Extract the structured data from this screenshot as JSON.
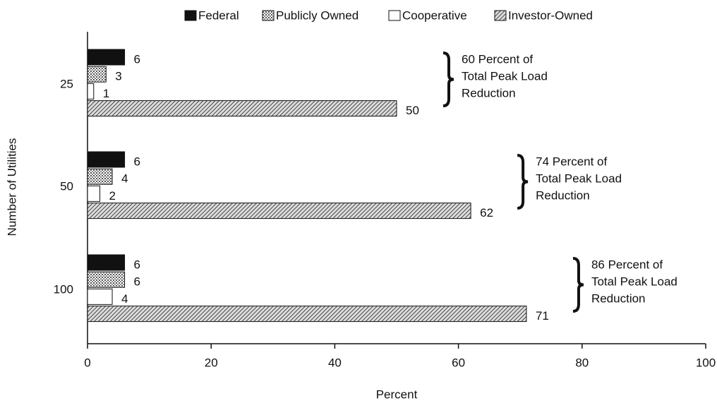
{
  "chart_data": {
    "type": "bar",
    "orientation": "horizontal",
    "categories": [
      "25",
      "50",
      "100"
    ],
    "series": [
      {
        "name": "Federal",
        "color": "#111111",
        "pattern": "solid",
        "values": [
          6,
          6,
          6
        ]
      },
      {
        "name": "Publicly Owned",
        "color": "#bdbdbd",
        "pattern": "dots",
        "values": [
          3,
          4,
          6
        ]
      },
      {
        "name": "Cooperative",
        "color": "#ffffff",
        "pattern": "none",
        "values": [
          1,
          2,
          4
        ]
      },
      {
        "name": "Investor-Owned",
        "color": "#9a9a9a",
        "pattern": "hatch",
        "values": [
          50,
          62,
          71
        ]
      }
    ],
    "xlim": [
      0,
      100
    ],
    "xticks": [
      0,
      20,
      40,
      60,
      80,
      100
    ],
    "xlabel": "Percent",
    "ylabel": "Number of Utilities",
    "legend": "top",
    "annotations": [
      [
        "60 Percent of",
        "Total Peak Load",
        "Reduction"
      ],
      [
        "74 Percent of",
        "Total Peak Load",
        "Reduction"
      ],
      [
        "86 Percent of",
        "Total Peak Load",
        "Reduction"
      ]
    ]
  }
}
